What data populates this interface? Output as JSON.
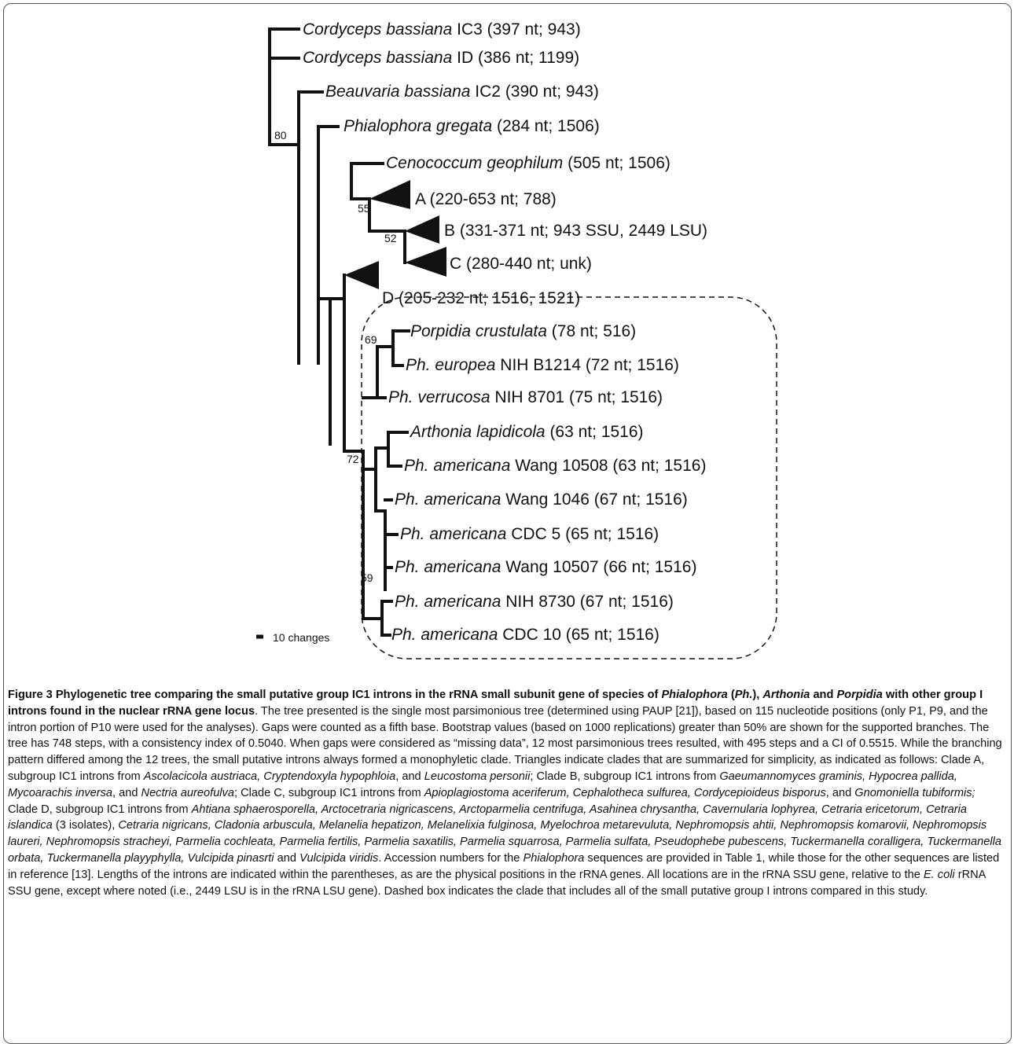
{
  "figure": {
    "leaves": [
      {
        "id": "cb-ic3",
        "parts": [
          [
            "Cordyceps bassiana",
            "i"
          ],
          [
            " IC3 (397 nt; 943)",
            ""
          ]
        ]
      },
      {
        "id": "cb-id",
        "parts": [
          [
            "Cordyceps bassiana",
            "i"
          ],
          [
            " ID (386 nt; 1199)",
            ""
          ]
        ]
      },
      {
        "id": "bb-ic2",
        "parts": [
          [
            "Beauvaria bassiana",
            "i"
          ],
          [
            " IC2 (390 nt; 943)",
            ""
          ]
        ]
      },
      {
        "id": "pg",
        "parts": [
          [
            "Phialophora gregata",
            "i"
          ],
          [
            " (284 nt; 1506)",
            ""
          ]
        ]
      },
      {
        "id": "cg",
        "parts": [
          [
            "Cenococcum geophilum",
            "i"
          ],
          [
            " (505 nt; 1506)",
            ""
          ]
        ]
      },
      {
        "id": "clade-a",
        "parts": [
          [
            "A (220-653 nt; 788)",
            ""
          ]
        ]
      },
      {
        "id": "clade-b",
        "parts": [
          [
            "B (331-371 nt; 943 SSU, 2449 LSU)",
            ""
          ]
        ]
      },
      {
        "id": "clade-c",
        "parts": [
          [
            "C (280-440 nt; unk)",
            ""
          ]
        ]
      },
      {
        "id": "clade-d",
        "parts": [
          [
            "D (205-232 nt; 1516, 1521)",
            ""
          ]
        ]
      },
      {
        "id": "pc",
        "parts": [
          [
            "Porpidia crustulata",
            "i"
          ],
          [
            " (78 nt; 516)",
            ""
          ]
        ]
      },
      {
        "id": "pe",
        "parts": [
          [
            "Ph. europea",
            "i"
          ],
          [
            " NIH B1214 (72 nt; 1516)",
            ""
          ]
        ]
      },
      {
        "id": "pv",
        "parts": [
          [
            "Ph. verrucosa",
            "i"
          ],
          [
            " NIH 8701 (75 nt; 1516)",
            ""
          ]
        ]
      },
      {
        "id": "al",
        "parts": [
          [
            "Arthonia lapidicola",
            "i"
          ],
          [
            " (63 nt; 1516)",
            ""
          ]
        ]
      },
      {
        "id": "pa10508",
        "parts": [
          [
            "Ph. americana",
            "i"
          ],
          [
            " Wang 10508 (63 nt; 1516)",
            ""
          ]
        ]
      },
      {
        "id": "pa1046",
        "parts": [
          [
            "Ph. americana",
            "i"
          ],
          [
            " Wang 1046 (67 nt; 1516)",
            ""
          ]
        ]
      },
      {
        "id": "pacdc5",
        "parts": [
          [
            "Ph. americana",
            "i"
          ],
          [
            " CDC 5 (65 nt; 1516)",
            ""
          ]
        ]
      },
      {
        "id": "pa10507",
        "parts": [
          [
            "Ph. americana",
            "i"
          ],
          [
            " Wang 10507 (66 nt; 1516)",
            ""
          ]
        ]
      },
      {
        "id": "pa8730",
        "parts": [
          [
            "Ph. americana",
            "i"
          ],
          [
            " NIH 8730 (67 nt; 1516)",
            ""
          ]
        ]
      },
      {
        "id": "pacdc10",
        "parts": [
          [
            "Ph. americana",
            "i"
          ],
          [
            " CDC 10 (65 nt; 1516)",
            ""
          ]
        ]
      }
    ],
    "bootstrap": [
      "80",
      "55",
      "52",
      "69",
      "72",
      "59"
    ],
    "scale_label": "10 changes"
  },
  "caption": {
    "title_parts": [
      [
        "Figure 3 Phylogenetic tree comparing the small putative group IC1 introns in the rRNA small subunit gene of species of ",
        "b"
      ],
      [
        "Phialophora",
        "bi"
      ],
      [
        " (",
        "b"
      ],
      [
        "Ph.",
        "bi"
      ],
      [
        "), ",
        "b"
      ],
      [
        "Arthonia",
        "bi"
      ],
      [
        " and ",
        "b"
      ],
      [
        "Porpidia",
        "bi"
      ],
      [
        " with other group I introns found in the nuclear rRNA gene locus",
        "b"
      ],
      [
        ". The tree presented is the single most parsimonious tree (determined using PAUP [21]), based on 115 nucleotide positions (only P1, P9, and the intron portion of P10 were used for the analyses). Gaps were counted as a fifth base. Bootstrap values (based on 1000 replications) greater than 50% are shown for the supported branches. The tree has 748 steps, with a consistency index of 0.5040. When gaps were considered as “missing data”, 12 most parsimonious trees resulted, with 495 steps and a CI of 0.5515. While the branching pattern differed among the 12 trees, the small putative introns always formed a monophyletic clade. Triangles indicate clades that are summarized for simplicity, as indicated as follows: Clade A, subgroup IC1 introns from ",
        ""
      ],
      [
        "Ascolacicola austriaca, Cryptendoxyla hypophloia",
        "i"
      ],
      [
        ", and ",
        ""
      ],
      [
        "Leucostoma personii",
        "i"
      ],
      [
        "; Clade B, subgroup IC1 introns from ",
        ""
      ],
      [
        "Gaeumannomyces graminis, Hypocrea pallida, Mycoarachis inversa",
        "i"
      ],
      [
        ", and ",
        ""
      ],
      [
        "Nectria aureofulva",
        "i"
      ],
      [
        "; Clade C, subgroup IC1 introns from ",
        ""
      ],
      [
        "Apioplagiostoma aceriferum, Cephalotheca sulfurea, Cordycepioideus bisporus",
        "i"
      ],
      [
        ", and ",
        ""
      ],
      [
        "Gnomoniella tubiformis;",
        "i"
      ],
      [
        " Clade D, subgroup IC1 introns from ",
        ""
      ],
      [
        "Ahtiana sphaerosporella, Arctocetraria nigricascens, Arctoparmelia centrifuga, Asahinea chrysantha, Cavernularia lophyrea, Cetraria ericetorum, Cetraria islandica",
        "i"
      ],
      [
        " (3 isolates), ",
        ""
      ],
      [
        "Cetraria nigricans, Cladonia arbuscula, Melanelia hepatizon, Melanelixia fulginosa, Myelochroa metarevuluta, Nephromopsis ahtii, Nephromopsis komarovii, Nephromopsis laureri, Nephromopsis stracheyi, Parmelia cochleata, Parmelia fertilis, Parmelia saxatilis, Parmelia squarrosa, Parmelia sulfata, Pseudophebe pubescens, Tuckermanella coralligera, Tuckermanella orbata, Tuckermanella playyphylla, Vulcipida pinasrti",
        "i"
      ],
      [
        " and ",
        ""
      ],
      [
        "Vulcipida viridis",
        "i"
      ],
      [
        ". Accession numbers for the ",
        ""
      ],
      [
        "Phialophora",
        "i"
      ],
      [
        " sequences are provided in Table 1, while those for the other sequences are listed in reference [13]. Lengths of the introns are indicated within the parentheses, as are the physical positions in the rRNA genes. All locations are in the rRNA SSU gene, relative to the ",
        ""
      ],
      [
        "E. coli",
        "i"
      ],
      [
        " rRNA SSU gene, except where noted (i.e., 2449 LSU is in the rRNA LSU gene). Dashed box indicates the clade that includes all of the small putative group I introns compared in this study.",
        ""
      ]
    ]
  }
}
